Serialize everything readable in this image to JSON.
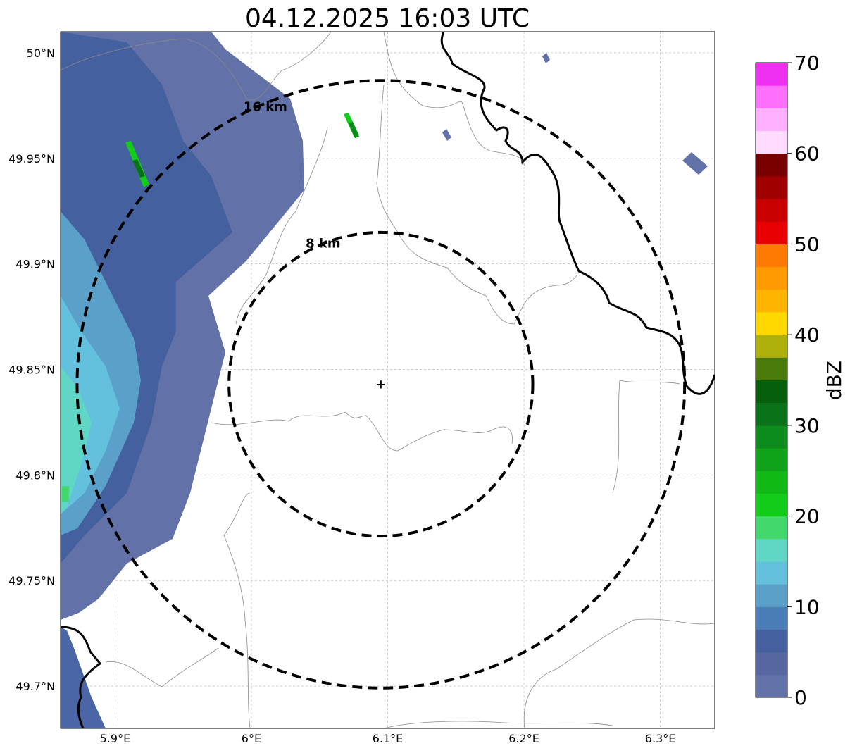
{
  "title": "04.12.2025 16:03 UTC",
  "map": {
    "lon_range": [
      5.86,
      6.34
    ],
    "lat_range": [
      49.68,
      50.01
    ],
    "x_ticks": [
      5.9,
      6.0,
      6.1,
      6.2,
      6.3
    ],
    "x_tick_labels": [
      "5.9°E",
      "6°E",
      "6.1°E",
      "6.2°E",
      "6.3°E"
    ],
    "y_ticks": [
      49.7,
      49.75,
      49.8,
      49.85,
      49.9,
      49.95,
      50.0
    ],
    "y_tick_labels": [
      "49.7°N",
      "49.75°N",
      "49.8°N",
      "49.85°N",
      "49.9°N",
      "49.95°N",
      "50°N"
    ],
    "radar_site": {
      "lon": 6.095,
      "lat": 49.843,
      "symbol": "+"
    },
    "range_rings": [
      {
        "radius_km": 8,
        "label": "8 km"
      },
      {
        "radius_km": 16,
        "label": "16 km"
      }
    ]
  },
  "colorbar": {
    "label": "dBZ",
    "min": 0,
    "max": 70,
    "ticks": [
      0,
      10,
      20,
      30,
      40,
      50,
      60,
      70
    ],
    "colors": [
      "#6271a7",
      "#5566a0",
      "#45609e",
      "#4a7db5",
      "#5ba0c9",
      "#64c1dd",
      "#60d7c4",
      "#42d86b",
      "#12cc1a",
      "#10b916",
      "#0ea318",
      "#0c8c1a",
      "#0a731a",
      "#065f0d",
      "#4a7a0a",
      "#b0b00a",
      "#ffd800",
      "#ffb400",
      "#ff9a00",
      "#ff7a00",
      "#e80000",
      "#c80000",
      "#a00000",
      "#780000",
      "#ffdcff",
      "#ffb0ff",
      "#ff70ff",
      "#f030f0"
    ]
  }
}
